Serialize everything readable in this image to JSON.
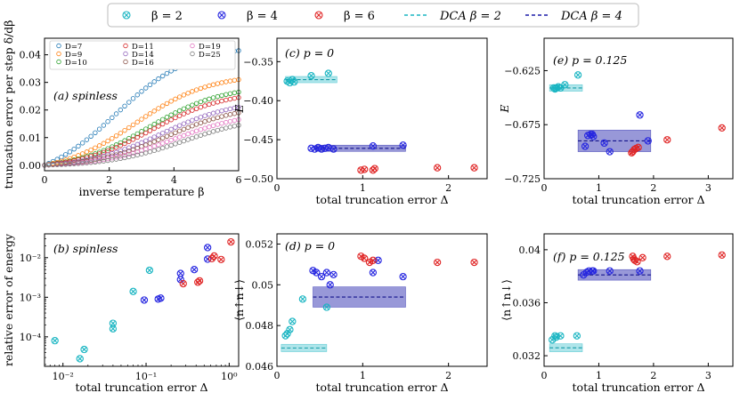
{
  "legend": {
    "entries": [
      {
        "label": "β = 2",
        "marker": "x-circle",
        "color": "#19b5c2"
      },
      {
        "label": "β = 4",
        "marker": "x-circle",
        "color": "#2626e0"
      },
      {
        "label": "β = 6",
        "marker": "x-circle",
        "color": "#e02626"
      },
      {
        "label": "DCA β = 2",
        "marker": "dashed-line",
        "color": "#19b5c2"
      },
      {
        "label": "DCA β = 4",
        "marker": "dashed-line",
        "color": "#1a1aa8"
      }
    ]
  },
  "chart_data": [
    {
      "id": "a",
      "type": "scatter",
      "panel_label": "(a) spinless",
      "xlabel": "inverse temperature β",
      "ylabel": "truncation error per step δ/dβ",
      "xlim": [
        0,
        6
      ],
      "ylim": [
        -0.002,
        0.046
      ],
      "xticks": [
        "0",
        "2",
        "4",
        "6"
      ],
      "yticks": [
        "0.00",
        "0.01",
        "0.02",
        "0.03",
        "0.04"
      ],
      "series": [
        {
          "name": "D=7",
          "color": "#1f77b4",
          "final": 0.0415,
          "mid": 2.2
        },
        {
          "name": "D=9",
          "color": "#ff7f0e",
          "final": 0.031,
          "mid": 2.8
        },
        {
          "name": "D=10",
          "color": "#2ca02c",
          "final": 0.0265,
          "mid": 3.2
        },
        {
          "name": "D=11",
          "color": "#d62728",
          "final": 0.0245,
          "mid": 3.3
        },
        {
          "name": "D=14",
          "color": "#9467bd",
          "final": 0.021,
          "mid": 3.6
        },
        {
          "name": "D=16",
          "color": "#8c564b",
          "final": 0.019,
          "mid": 3.8
        },
        {
          "name": "D=19",
          "color": "#e377c2",
          "final": 0.0165,
          "mid": 4.0
        },
        {
          "name": "D=25",
          "color": "#7f7f7f",
          "final": 0.0145,
          "mid": 4.3
        }
      ]
    },
    {
      "id": "b",
      "type": "scatter",
      "panel_label": "(b) spinless",
      "xlabel": "total truncation error Δ",
      "ylabel": "relative error of energy",
      "xscale": "log",
      "yscale": "log",
      "xlim": [
        0.006,
        1.3
      ],
      "ylim": [
        1.8e-05,
        0.04
      ],
      "xticks": [
        {
          "v": 0.01,
          "label": "10⁻²"
        },
        {
          "v": 0.1,
          "label": "10⁻¹"
        },
        {
          "v": 1,
          "label": "10⁰"
        }
      ],
      "yticks": [
        {
          "v": 0.0001,
          "label": "10⁻⁴"
        },
        {
          "v": 0.001,
          "label": "10⁻³"
        },
        {
          "v": 0.01,
          "label": "10⁻²"
        }
      ],
      "series": [
        {
          "name": "β = 2",
          "color": "#19b5c2",
          "x": [
            0.008,
            0.016,
            0.018,
            0.04,
            0.04,
            0.07,
            0.11
          ],
          "y": [
            8e-05,
            2.8e-05,
            4.8e-05,
            0.00016,
            0.00022,
            0.0014,
            0.0048
          ]
        },
        {
          "name": "β = 4",
          "color": "#2626e0",
          "x": [
            0.095,
            0.14,
            0.15,
            0.26,
            0.26,
            0.38,
            0.55,
            0.55
          ],
          "y": [
            0.00085,
            0.0009,
            0.00095,
            0.0028,
            0.004,
            0.005,
            0.0092,
            0.018
          ]
        },
        {
          "name": "β = 6",
          "color": "#e02626",
          "x": [
            0.28,
            0.42,
            0.44,
            0.62,
            0.66,
            0.8,
            1.05
          ],
          "y": [
            0.0022,
            0.0024,
            0.0026,
            0.0095,
            0.011,
            0.009,
            0.025
          ]
        }
      ]
    },
    {
      "id": "c",
      "type": "scatter",
      "panel_label": "(c) p = 0",
      "xlabel": "total truncation error Δ",
      "ylabel": "E",
      "xlim": [
        0,
        2.45
      ],
      "ylim": [
        -0.5,
        -0.32
      ],
      "xticks": [
        0,
        1,
        2
      ],
      "yticks": [
        -0.35,
        -0.4,
        -0.45,
        -0.5
      ],
      "ytick_labels": [
        "−0.35",
        "−0.40",
        "−0.45",
        "−0.50"
      ],
      "series": [
        {
          "name": "β = 2",
          "color": "#19b5c2",
          "x": [
            0.12,
            0.15,
            0.18,
            0.2,
            0.4,
            0.6
          ],
          "y": [
            -0.375,
            -0.377,
            -0.373,
            -0.376,
            -0.368,
            -0.365
          ]
        },
        {
          "name": "β = 4",
          "color": "#2626e0",
          "x": [
            0.4,
            0.44,
            0.48,
            0.52,
            0.56,
            0.6,
            0.66,
            1.12,
            1.47
          ],
          "y": [
            -0.461,
            -0.462,
            -0.46,
            -0.462,
            -0.461,
            -0.46,
            -0.462,
            -0.458,
            -0.457
          ]
        },
        {
          "name": "β = 6",
          "color": "#e02626",
          "x": [
            0.98,
            1.02,
            1.12,
            1.14,
            1.87,
            2.3
          ],
          "y": [
            -0.489,
            -0.488,
            -0.489,
            -0.487,
            -0.486,
            -0.486
          ]
        }
      ],
      "dca": [
        {
          "name": "DCA β = 2",
          "color": "#19b5c2",
          "value": -0.373,
          "err": 0.004,
          "xrange": [
            0.1,
            0.7
          ]
        },
        {
          "name": "DCA β = 4",
          "color": "#1a1aa8",
          "value": -0.461,
          "err": 0.004,
          "xrange": [
            0.45,
            1.5
          ]
        }
      ]
    },
    {
      "id": "d",
      "type": "scatter",
      "panel_label": "(d) p = 0",
      "xlabel": "total truncation error Δ",
      "ylabel": "⟨n↑n↓⟩",
      "xlim": [
        0,
        2.45
      ],
      "ylim": [
        0.046,
        0.0525
      ],
      "xticks": [
        0,
        1,
        2
      ],
      "yticks": [
        0.046,
        0.048,
        0.05,
        0.052
      ],
      "ytick_labels": [
        "0.046",
        "0.048",
        "0.05",
        "0.052"
      ],
      "series": [
        {
          "name": "β = 2",
          "color": "#19b5c2",
          "x": [
            0.1,
            0.12,
            0.15,
            0.18,
            0.3,
            0.58
          ],
          "y": [
            0.0475,
            0.0476,
            0.0478,
            0.0482,
            0.0493,
            0.0489
          ]
        },
        {
          "name": "β = 4",
          "color": "#2626e0",
          "x": [
            0.42,
            0.46,
            0.52,
            0.58,
            0.62,
            0.66,
            1.12,
            1.18,
            1.47
          ],
          "y": [
            0.0507,
            0.0506,
            0.0504,
            0.0506,
            0.05,
            0.0505,
            0.0506,
            0.0512,
            0.0504
          ]
        },
        {
          "name": "β = 6",
          "color": "#e02626",
          "x": [
            0.98,
            1.02,
            1.08,
            1.12,
            1.87,
            2.3
          ],
          "y": [
            0.0514,
            0.0513,
            0.0511,
            0.0512,
            0.0511,
            0.0511
          ]
        }
      ],
      "dca": [
        {
          "name": "DCA β = 2",
          "color": "#19b5c2",
          "value": 0.0469,
          "err": 0.00018,
          "xrange": [
            0.05,
            0.58
          ]
        },
        {
          "name": "DCA β = 4",
          "color": "#1a1aa8",
          "value": 0.0494,
          "err": 0.0005,
          "xrange": [
            0.42,
            1.5
          ]
        }
      ]
    },
    {
      "id": "e",
      "type": "scatter",
      "panel_label": "(e) p = 0.125",
      "xlabel": "total truncation error Δ",
      "ylabel": "E",
      "xlim": [
        0,
        3.45
      ],
      "ylim": [
        -0.725,
        -0.595
      ],
      "xticks": [
        0,
        1,
        2,
        3
      ],
      "yticks": [
        -0.625,
        -0.675,
        -0.725
      ],
      "ytick_labels": [
        "−0.625",
        "−0.675",
        "−0.725"
      ],
      "series": [
        {
          "name": "β = 2",
          "color": "#19b5c2",
          "x": [
            0.18,
            0.2,
            0.22,
            0.26,
            0.3,
            0.38,
            0.62
          ],
          "y": [
            -0.641,
            -0.642,
            -0.641,
            -0.64,
            -0.641,
            -0.638,
            -0.629
          ]
        },
        {
          "name": "β = 4",
          "color": "#2626e0",
          "x": [
            0.75,
            0.8,
            0.85,
            0.88,
            0.9,
            1.1,
            1.2,
            1.75,
            1.9
          ],
          "y": [
            -0.695,
            -0.685,
            -0.684,
            -0.684,
            -0.686,
            -0.692,
            -0.7,
            -0.666,
            -0.69
          ]
        },
        {
          "name": "β = 6",
          "color": "#e02626",
          "x": [
            1.6,
            1.62,
            1.65,
            1.68,
            1.72,
            2.25,
            3.25
          ],
          "y": [
            -0.701,
            -0.7,
            -0.698,
            -0.697,
            -0.696,
            -0.689,
            -0.678
          ]
        }
      ],
      "dca": [
        {
          "name": "DCA β = 2",
          "color": "#19b5c2",
          "value": -0.641,
          "err": 0.003,
          "xrange": [
            0.1,
            0.7
          ]
        },
        {
          "name": "DCA β = 4",
          "color": "#1a1aa8",
          "value": -0.69,
          "err": 0.01,
          "xrange": [
            0.62,
            1.95
          ]
        }
      ]
    },
    {
      "id": "f",
      "type": "scatter",
      "panel_label": "(f) p = 0.125",
      "xlabel": "total truncation error Δ",
      "ylabel": "⟨n↑n↓⟩",
      "xlim": [
        0,
        3.45
      ],
      "ylim": [
        0.0312,
        0.0412
      ],
      "xticks": [
        0,
        1,
        2,
        3
      ],
      "yticks": [
        0.032,
        0.036,
        0.04
      ],
      "ytick_labels": [
        "0.032",
        "0.036",
        "0.04"
      ],
      "series": [
        {
          "name": "β = 2",
          "color": "#19b5c2",
          "x": [
            0.15,
            0.2,
            0.22,
            0.3,
            0.6
          ],
          "y": [
            0.0332,
            0.0335,
            0.0334,
            0.0335,
            0.0335
          ]
        },
        {
          "name": "β = 4",
          "color": "#2626e0",
          "x": [
            0.72,
            0.78,
            0.82,
            0.88,
            0.9,
            1.2,
            1.75
          ],
          "y": [
            0.0381,
            0.0383,
            0.0384,
            0.0384,
            0.0384,
            0.0384,
            0.0384
          ]
        },
        {
          "name": "β = 6",
          "color": "#e02626",
          "x": [
            1.62,
            1.64,
            1.66,
            1.7,
            1.8,
            2.25,
            3.25
          ],
          "y": [
            0.0395,
            0.0393,
            0.0392,
            0.0391,
            0.0394,
            0.0395,
            0.0396
          ]
        }
      ],
      "dca": [
        {
          "name": "DCA β = 2",
          "color": "#19b5c2",
          "value": 0.0326,
          "err": 0.0003,
          "xrange": [
            0.1,
            0.7
          ]
        },
        {
          "name": "DCA β = 4",
          "color": "#1a1aa8",
          "value": 0.0381,
          "err": 0.0004,
          "xrange": [
            0.62,
            1.95
          ]
        }
      ]
    }
  ]
}
